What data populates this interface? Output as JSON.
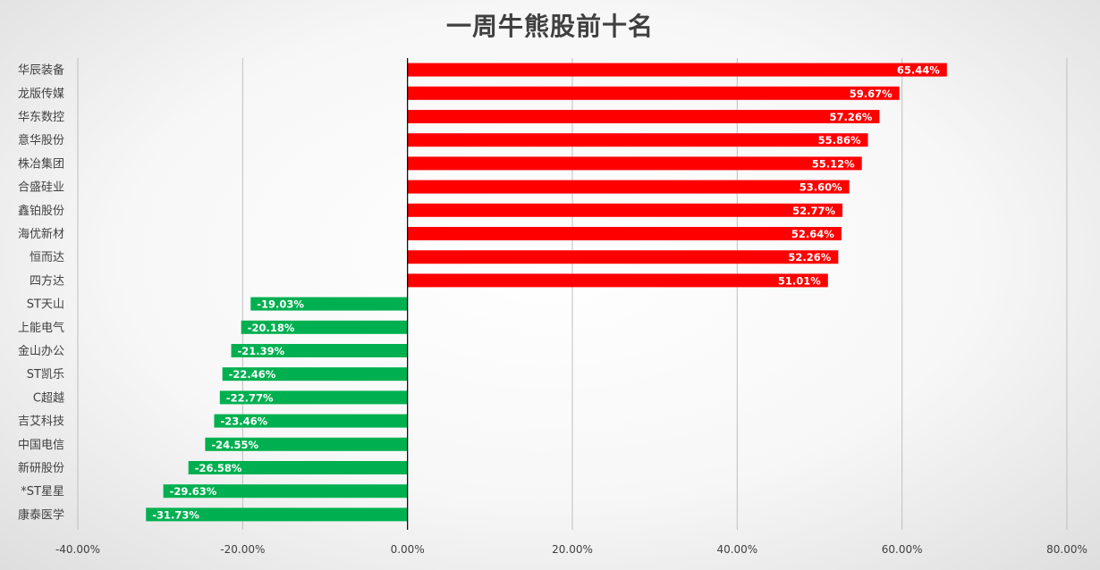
{
  "chart_data": {
    "type": "bar",
    "orientation": "horizontal",
    "title": "一周牛熊股前十名",
    "categories": [
      "华辰装备",
      "龙版传媒",
      "华东数控",
      "意华股份",
      "株冶集团",
      "合盛硅业",
      "鑫铂股份",
      "海优新材",
      "恒而达",
      "四方达",
      "ST天山",
      "上能电气",
      "金山办公",
      "ST凯乐",
      "C超越",
      "吉艾科技",
      "中国电信",
      "新研股份",
      "*ST星星",
      "康泰医学"
    ],
    "values": [
      65.44,
      59.67,
      57.26,
      55.86,
      55.12,
      53.6,
      52.77,
      52.64,
      52.26,
      51.01,
      -19.03,
      -20.18,
      -21.39,
      -22.46,
      -22.77,
      -23.46,
      -24.55,
      -26.58,
      -29.63,
      -31.73
    ],
    "value_labels": [
      "65.44%",
      "59.67%",
      "57.26%",
      "55.86%",
      "55.12%",
      "53.60%",
      "52.77%",
      "52.64%",
      "52.26%",
      "51.01%",
      "-19.03%",
      "-20.18%",
      "-21.39%",
      "-22.46%",
      "-22.77%",
      "-23.46%",
      "-24.55%",
      "-26.58%",
      "-29.63%",
      "-31.73%"
    ],
    "xlim": [
      -40,
      80
    ],
    "xticks": [
      -40,
      -20,
      0,
      20,
      40,
      60,
      80
    ],
    "xtick_labels": [
      "-40.00%",
      "-20.00%",
      "0.00%",
      "20.00%",
      "40.00%",
      "60.00%",
      "80.00%"
    ],
    "grid": "vertical",
    "legend": "none",
    "colors": {
      "positive": "#ff0000",
      "negative": "#00b050",
      "grid": "#bfbfbf",
      "axis": "#000000"
    }
  }
}
